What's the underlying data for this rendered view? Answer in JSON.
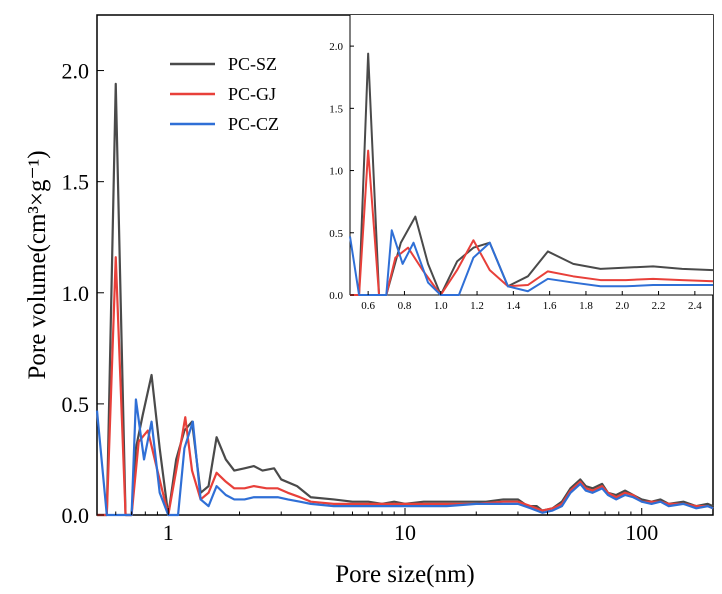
{
  "chart_data": [
    {
      "type": "line",
      "xscale": "log",
      "xlabel": "Pore size(nm)",
      "ylabel": "Pore volume(cm³×g⁻¹)",
      "xlim": [
        0.5,
        200
      ],
      "ylim": [
        0,
        2.25
      ],
      "xticks": [
        {
          "value": 1,
          "label": "1"
        },
        {
          "value": 10,
          "label": "10"
        },
        {
          "value": 100,
          "label": "100"
        }
      ],
      "yticks": [
        {
          "value": 0,
          "label": "0.0"
        },
        {
          "value": 0.5,
          "label": "0.5"
        },
        {
          "value": 1.0,
          "label": "1.0"
        },
        {
          "value": 1.5,
          "label": "1.5"
        },
        {
          "value": 2.0,
          "label": "2.0"
        }
      ],
      "legend": "top-left",
      "series": [
        {
          "name": "PC-SZ",
          "color": "#4a4a4a",
          "points": [
            [
              0.5,
              0.0
            ],
            [
              0.55,
              0.0
            ],
            [
              0.6,
              1.94
            ],
            [
              0.66,
              0.0
            ],
            [
              0.7,
              0.0
            ],
            [
              0.73,
              0.3
            ],
            [
              0.78,
              0.45
            ],
            [
              0.85,
              0.63
            ],
            [
              0.92,
              0.3
            ],
            [
              1.0,
              0.0
            ],
            [
              1.08,
              0.25
            ],
            [
              1.17,
              0.38
            ],
            [
              1.26,
              0.42
            ],
            [
              1.37,
              0.1
            ],
            [
              1.48,
              0.13
            ],
            [
              1.6,
              0.35
            ],
            [
              1.75,
              0.25
            ],
            [
              1.9,
              0.2
            ],
            [
              2.1,
              0.21
            ],
            [
              2.3,
              0.22
            ],
            [
              2.5,
              0.2
            ],
            [
              2.8,
              0.21
            ],
            [
              3.0,
              0.16
            ],
            [
              3.5,
              0.13
            ],
            [
              4.0,
              0.08
            ],
            [
              5.0,
              0.07
            ],
            [
              6.0,
              0.06
            ],
            [
              7.0,
              0.06
            ],
            [
              8.0,
              0.05
            ],
            [
              9.0,
              0.06
            ],
            [
              10.0,
              0.05
            ],
            [
              12.0,
              0.06
            ],
            [
              15.0,
              0.06
            ],
            [
              18.0,
              0.06
            ],
            [
              22.0,
              0.06
            ],
            [
              26.0,
              0.07
            ],
            [
              30.0,
              0.07
            ],
            [
              33.0,
              0.04
            ],
            [
              36.0,
              0.04
            ],
            [
              38.0,
              0.02
            ],
            [
              42.0,
              0.03
            ],
            [
              46.0,
              0.06
            ],
            [
              50.0,
              0.12
            ],
            [
              55.0,
              0.16
            ],
            [
              58.0,
              0.13
            ],
            [
              62.0,
              0.12
            ],
            [
              68.0,
              0.14
            ],
            [
              72.0,
              0.1
            ],
            [
              78.0,
              0.09
            ],
            [
              85.0,
              0.11
            ],
            [
              92.0,
              0.09
            ],
            [
              100.0,
              0.07
            ],
            [
              110.0,
              0.06
            ],
            [
              120.0,
              0.07
            ],
            [
              130.0,
              0.05
            ],
            [
              150.0,
              0.06
            ],
            [
              170.0,
              0.04
            ],
            [
              190.0,
              0.05
            ],
            [
              200.0,
              0.04
            ]
          ]
        },
        {
          "name": "PC-GJ",
          "color": "#e8403a",
          "points": [
            [
              0.5,
              0.0
            ],
            [
              0.55,
              0.0
            ],
            [
              0.6,
              1.16
            ],
            [
              0.66,
              0.0
            ],
            [
              0.7,
              0.0
            ],
            [
              0.75,
              0.33
            ],
            [
              0.82,
              0.38
            ],
            [
              0.9,
              0.2
            ],
            [
              1.0,
              0.0
            ],
            [
              1.08,
              0.2
            ],
            [
              1.18,
              0.44
            ],
            [
              1.26,
              0.2
            ],
            [
              1.37,
              0.07
            ],
            [
              1.48,
              0.1
            ],
            [
              1.6,
              0.19
            ],
            [
              1.75,
              0.15
            ],
            [
              1.9,
              0.12
            ],
            [
              2.1,
              0.12
            ],
            [
              2.3,
              0.13
            ],
            [
              2.6,
              0.12
            ],
            [
              2.9,
              0.12
            ],
            [
              3.2,
              0.1
            ],
            [
              3.6,
              0.08
            ],
            [
              4.0,
              0.06
            ],
            [
              5.0,
              0.05
            ],
            [
              6.0,
              0.05
            ],
            [
              8.0,
              0.05
            ],
            [
              10.0,
              0.05
            ],
            [
              12.0,
              0.05
            ],
            [
              15.0,
              0.05
            ],
            [
              20.0,
              0.05
            ],
            [
              26.0,
              0.06
            ],
            [
              30.0,
              0.06
            ],
            [
              34.0,
              0.04
            ],
            [
              38.0,
              0.02
            ],
            [
              42.0,
              0.03
            ],
            [
              46.0,
              0.05
            ],
            [
              50.0,
              0.11
            ],
            [
              55.0,
              0.15
            ],
            [
              58.0,
              0.12
            ],
            [
              62.0,
              0.11
            ],
            [
              68.0,
              0.13
            ],
            [
              72.0,
              0.1
            ],
            [
              78.0,
              0.08
            ],
            [
              85.0,
              0.1
            ],
            [
              92.0,
              0.09
            ],
            [
              100.0,
              0.06
            ],
            [
              110.0,
              0.06
            ],
            [
              120.0,
              0.06
            ],
            [
              130.0,
              0.05
            ],
            [
              150.0,
              0.05
            ],
            [
              170.0,
              0.04
            ],
            [
              190.0,
              0.04
            ],
            [
              200.0,
              0.03
            ]
          ]
        },
        {
          "name": "PC-CZ",
          "color": "#2f6fd6",
          "points": [
            [
              0.5,
              0.47
            ],
            [
              0.55,
              0.0
            ],
            [
              0.6,
              0.0
            ],
            [
              0.66,
              0.0
            ],
            [
              0.7,
              0.0
            ],
            [
              0.73,
              0.52
            ],
            [
              0.79,
              0.25
            ],
            [
              0.85,
              0.42
            ],
            [
              0.92,
              0.1
            ],
            [
              1.0,
              0.0
            ],
            [
              1.1,
              0.0
            ],
            [
              1.17,
              0.3
            ],
            [
              1.27,
              0.42
            ],
            [
              1.37,
              0.07
            ],
            [
              1.48,
              0.04
            ],
            [
              1.6,
              0.13
            ],
            [
              1.75,
              0.09
            ],
            [
              1.9,
              0.07
            ],
            [
              2.1,
              0.07
            ],
            [
              2.3,
              0.08
            ],
            [
              2.6,
              0.08
            ],
            [
              2.9,
              0.08
            ],
            [
              3.2,
              0.07
            ],
            [
              3.6,
              0.06
            ],
            [
              4.0,
              0.05
            ],
            [
              5.0,
              0.04
            ],
            [
              6.0,
              0.04
            ],
            [
              8.0,
              0.04
            ],
            [
              10.0,
              0.04
            ],
            [
              12.0,
              0.04
            ],
            [
              15.0,
              0.04
            ],
            [
              20.0,
              0.05
            ],
            [
              26.0,
              0.05
            ],
            [
              30.0,
              0.05
            ],
            [
              34.0,
              0.03
            ],
            [
              38.0,
              0.01
            ],
            [
              42.0,
              0.02
            ],
            [
              46.0,
              0.04
            ],
            [
              50.0,
              0.1
            ],
            [
              55.0,
              0.14
            ],
            [
              58.0,
              0.11
            ],
            [
              62.0,
              0.1
            ],
            [
              68.0,
              0.12
            ],
            [
              72.0,
              0.09
            ],
            [
              78.0,
              0.07
            ],
            [
              85.0,
              0.09
            ],
            [
              92.0,
              0.08
            ],
            [
              100.0,
              0.06
            ],
            [
              110.0,
              0.05
            ],
            [
              120.0,
              0.06
            ],
            [
              130.0,
              0.04
            ],
            [
              150.0,
              0.05
            ],
            [
              170.0,
              0.03
            ],
            [
              190.0,
              0.04
            ],
            [
              200.0,
              0.03
            ]
          ]
        }
      ]
    },
    {
      "type": "line",
      "inset": true,
      "xscale": "linear",
      "xlim": [
        0.5,
        2.5
      ],
      "ylim": [
        0,
        2.25
      ],
      "xticks": [
        {
          "value": 0.6,
          "label": "0.6"
        },
        {
          "value": 0.8,
          "label": "0.8"
        },
        {
          "value": 1.0,
          "label": "1.0"
        },
        {
          "value": 1.2,
          "label": "1.2"
        },
        {
          "value": 1.4,
          "label": "1.4"
        },
        {
          "value": 1.6,
          "label": "1.6"
        },
        {
          "value": 1.8,
          "label": "1.8"
        },
        {
          "value": 2.0,
          "label": "2.0"
        },
        {
          "value": 2.2,
          "label": "2.2"
        },
        {
          "value": 2.4,
          "label": "2.4"
        }
      ],
      "yticks": [
        {
          "value": 0,
          "label": "0.0"
        },
        {
          "value": 0.5,
          "label": "0.5"
        },
        {
          "value": 1.0,
          "label": "1.0"
        },
        {
          "value": 1.5,
          "label": "1.5"
        },
        {
          "value": 2.0,
          "label": "2.0"
        }
      ],
      "series": [
        {
          "name": "PC-SZ",
          "color": "#4a4a4a",
          "points": [
            [
              0.5,
              0.0
            ],
            [
              0.55,
              0.0
            ],
            [
              0.6,
              1.94
            ],
            [
              0.66,
              0.0
            ],
            [
              0.7,
              0.0
            ],
            [
              0.78,
              0.42
            ],
            [
              0.86,
              0.63
            ],
            [
              0.93,
              0.25
            ],
            [
              1.0,
              0.0
            ],
            [
              1.09,
              0.27
            ],
            [
              1.18,
              0.38
            ],
            [
              1.27,
              0.42
            ],
            [
              1.37,
              0.07
            ],
            [
              1.48,
              0.15
            ],
            [
              1.59,
              0.35
            ],
            [
              1.73,
              0.25
            ],
            [
              1.88,
              0.21
            ],
            [
              2.02,
              0.22
            ],
            [
              2.17,
              0.23
            ],
            [
              2.33,
              0.21
            ],
            [
              2.5,
              0.2
            ]
          ]
        },
        {
          "name": "PC-GJ",
          "color": "#e8403a",
          "points": [
            [
              0.5,
              0.0
            ],
            [
              0.55,
              0.0
            ],
            [
              0.6,
              1.16
            ],
            [
              0.66,
              0.0
            ],
            [
              0.7,
              0.0
            ],
            [
              0.75,
              0.3
            ],
            [
              0.82,
              0.38
            ],
            [
              0.9,
              0.2
            ],
            [
              1.0,
              0.0
            ],
            [
              1.09,
              0.2
            ],
            [
              1.18,
              0.44
            ],
            [
              1.27,
              0.2
            ],
            [
              1.37,
              0.07
            ],
            [
              1.48,
              0.08
            ],
            [
              1.59,
              0.19
            ],
            [
              1.73,
              0.15
            ],
            [
              1.88,
              0.12
            ],
            [
              2.02,
              0.12
            ],
            [
              2.17,
              0.13
            ],
            [
              2.33,
              0.12
            ],
            [
              2.5,
              0.11
            ]
          ]
        },
        {
          "name": "PC-CZ",
          "color": "#2f6fd6",
          "points": [
            [
              0.5,
              0.47
            ],
            [
              0.55,
              0.0
            ],
            [
              0.6,
              0.0
            ],
            [
              0.66,
              0.0
            ],
            [
              0.7,
              0.0
            ],
            [
              0.73,
              0.52
            ],
            [
              0.79,
              0.25
            ],
            [
              0.85,
              0.42
            ],
            [
              0.93,
              0.1
            ],
            [
              1.0,
              0.0
            ],
            [
              1.1,
              0.0
            ],
            [
              1.18,
              0.3
            ],
            [
              1.27,
              0.42
            ],
            [
              1.37,
              0.07
            ],
            [
              1.48,
              0.03
            ],
            [
              1.59,
              0.13
            ],
            [
              1.73,
              0.1
            ],
            [
              1.88,
              0.07
            ],
            [
              2.02,
              0.07
            ],
            [
              2.17,
              0.08
            ],
            [
              2.33,
              0.08
            ],
            [
              2.5,
              0.08
            ]
          ]
        }
      ]
    }
  ]
}
